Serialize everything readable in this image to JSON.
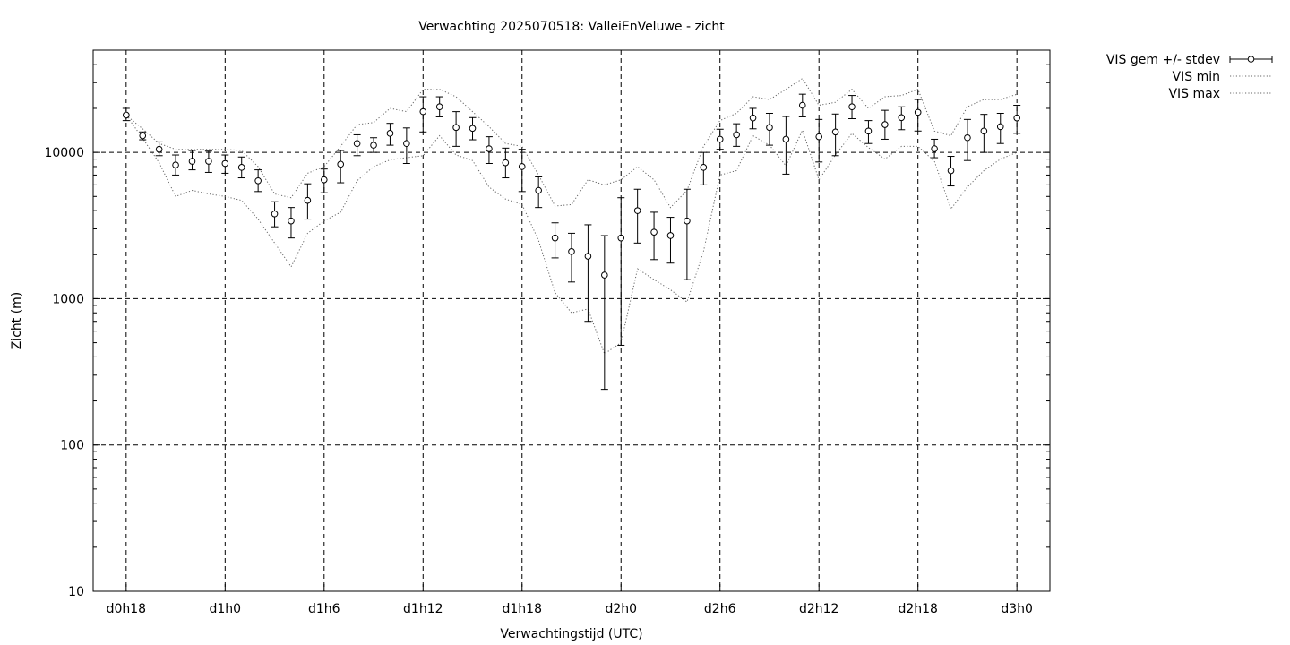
{
  "chart_data": {
    "type": "line",
    "title": "Verwachting 2025070518: ValleiEnVeluwe - zicht",
    "xlabel": "Verwachtingstijd (UTC)",
    "ylabel": "Zicht (m)",
    "y_scale": "log",
    "ylim": [
      10,
      50000
    ],
    "y_ticks": [
      10,
      100,
      1000,
      10000
    ],
    "y_tick_labels": [
      "10",
      "100",
      "1000",
      "10000"
    ],
    "x_unit": "hours since d0h0",
    "xlim": [
      16,
      74
    ],
    "x_ticks": [
      18,
      24,
      30,
      36,
      42,
      48,
      54,
      60,
      66,
      72
    ],
    "x_tick_labels": [
      "d0h18",
      "d1h0",
      "d1h6",
      "d1h12",
      "d1h18",
      "d2h0",
      "d2h6",
      "d2h12",
      "d2h18",
      "d3h0"
    ],
    "grid": true,
    "legend_position": "outside top-right",
    "x": [
      18,
      19,
      20,
      21,
      22,
      23,
      24,
      25,
      26,
      27,
      28,
      29,
      30,
      31,
      32,
      33,
      34,
      35,
      36,
      37,
      38,
      39,
      40,
      41,
      42,
      43,
      44,
      45,
      46,
      47,
      48,
      49,
      50,
      51,
      52,
      53,
      54,
      55,
      56,
      57,
      58,
      59,
      60,
      61,
      62,
      63,
      64,
      65,
      66,
      67,
      68,
      69,
      70,
      71,
      72
    ],
    "series": [
      {
        "name": "VIS gem +/- stdev",
        "style": "points-errorbars",
        "values": [
          18000,
          13000,
          10500,
          8200,
          8700,
          8700,
          8400,
          7900,
          6400,
          3800,
          3400,
          4700,
          6500,
          8300,
          11500,
          11200,
          13500,
          11500,
          19000,
          20500,
          14800,
          14600,
          10600,
          8500,
          8000,
          5500,
          2600,
          2100,
          1950,
          1450,
          2600,
          4000,
          2850,
          2700,
          3400,
          7900,
          12300,
          13200,
          17200,
          14800,
          12300,
          21000,
          12800,
          13800,
          20500,
          14000,
          15500,
          17300,
          18800,
          10600,
          7500,
          12600,
          14000,
          15000,
          17200
        ],
        "stdev_low": [
          16500,
          12200,
          9500,
          7000,
          7600,
          7300,
          7200,
          6700,
          5400,
          3100,
          2600,
          3500,
          5300,
          6200,
          9500,
          10000,
          11200,
          8400,
          13800,
          17500,
          11000,
          12200,
          8400,
          6700,
          5400,
          4200,
          1900,
          1300,
          700,
          240,
          480,
          2400,
          1850,
          1750,
          1350,
          6000,
          10500,
          11000,
          14500,
          11200,
          7100,
          17500,
          8600,
          9500,
          17000,
          11500,
          12300,
          14300,
          14000,
          9200,
          5900,
          8800,
          10000,
          11500,
          13500
        ],
        "stdev_high": [
          20000,
          13800,
          11800,
          9600,
          10300,
          10200,
          9600,
          9300,
          7600,
          4600,
          4200,
          6100,
          7700,
          10300,
          13200,
          12600,
          15800,
          14700,
          24000,
          24000,
          19000,
          17300,
          12800,
          10700,
          10500,
          6800,
          3300,
          2800,
          3200,
          2700,
          4900,
          5600,
          3900,
          3600,
          5600,
          10000,
          14400,
          15700,
          20000,
          18500,
          17600,
          25000,
          16800,
          18300,
          24500,
          16500,
          19400,
          20500,
          23000,
          12300,
          9400,
          16800,
          18200,
          18500,
          21000
        ]
      },
      {
        "name": "VIS min",
        "style": "dotted",
        "values": [
          18000,
          12500,
          8500,
          5000,
          5500,
          5200,
          5000,
          4700,
          3500,
          2400,
          1650,
          2800,
          3400,
          3900,
          6400,
          8000,
          8900,
          9200,
          9500,
          13000,
          9600,
          8800,
          5800,
          4800,
          4400,
          2500,
          1100,
          800,
          850,
          420,
          500,
          1600,
          1350,
          1150,
          950,
          2100,
          7000,
          7500,
          13000,
          11200,
          8100,
          14200,
          6500,
          9600,
          13500,
          10800,
          9000,
          11000,
          11000,
          8700,
          4100,
          5800,
          7500,
          9000,
          10000
        ]
      },
      {
        "name": "VIS max",
        "style": "dotted",
        "values": [
          18000,
          14500,
          11500,
          10500,
          10500,
          10500,
          10500,
          10300,
          8000,
          5200,
          4900,
          7200,
          8000,
          11000,
          15500,
          16000,
          20000,
          19000,
          27000,
          27000,
          24000,
          19000,
          15000,
          11500,
          11000,
          7000,
          4300,
          4400,
          6500,
          6000,
          6500,
          8000,
          6500,
          4200,
          5500,
          11000,
          16500,
          18500,
          24000,
          23000,
          27000,
          32000,
          21000,
          22000,
          27000,
          20000,
          24000,
          24500,
          27000,
          14000,
          13000,
          20500,
          23000,
          23000,
          25000
        ]
      }
    ]
  }
}
